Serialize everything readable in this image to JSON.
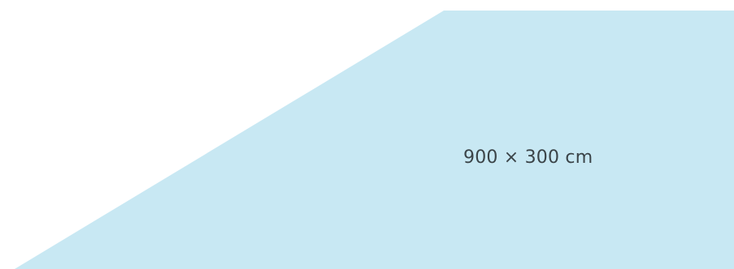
{
  "shape": {
    "fill_color": "#c8e8f3",
    "dimension_label": "900 × 300 cm"
  }
}
